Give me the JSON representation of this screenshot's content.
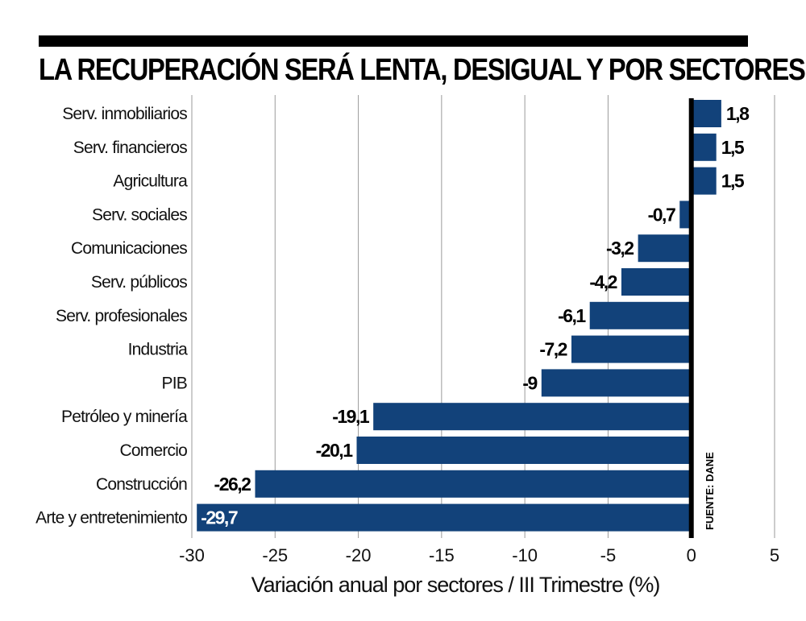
{
  "chart_data": {
    "type": "bar",
    "orientation": "horizontal",
    "title": "LA RECUPERACIÓN SERÁ LENTA, DESIGUAL Y POR SECTORES",
    "xlabel": "Variación anual por sectores / III Trimestre (%)",
    "ylabel": "",
    "categories": [
      "Serv. inmobiliarios",
      "Serv. financieros",
      "Agricultura",
      "Serv. sociales",
      "Comunicaciones",
      "Serv. públicos",
      "Serv. profesionales",
      "Industria",
      "PIB",
      "Petróleo y minería",
      "Comercio",
      "Construcción",
      "Arte y entretenimiento"
    ],
    "values": [
      1.8,
      1.5,
      1.5,
      -0.7,
      -3.2,
      -4.2,
      -6.1,
      -7.2,
      -9,
      -19.1,
      -20.1,
      -26.2,
      -29.7
    ],
    "value_labels": [
      "1,8",
      "1,5",
      "1,5",
      "-0,7",
      "-3,2",
      "-4,2",
      "-6,1",
      "-7,2",
      "-9",
      "-19,1",
      "-20,1",
      "-26,2",
      "-29,7"
    ],
    "xlim": [
      -30,
      5
    ],
    "xticks": [
      -30,
      -25,
      -20,
      -15,
      -10,
      -5,
      0,
      5
    ],
    "xtick_labels": [
      "-30",
      "-25",
      "-20",
      "-15",
      "-10",
      "-5",
      "0",
      "5"
    ],
    "grid": "vertical",
    "bar_color": "#12427a",
    "source": "FUENTE: DANE"
  }
}
